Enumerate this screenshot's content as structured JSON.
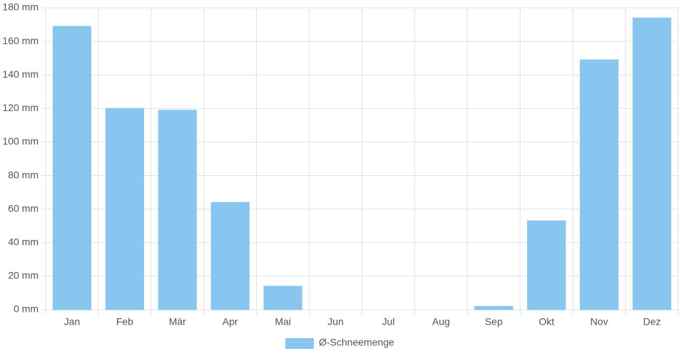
{
  "chart_data": {
    "type": "bar",
    "categories": [
      "Jan",
      "Feb",
      "Mär",
      "Apr",
      "Mai",
      "Jun",
      "Jul",
      "Aug",
      "Sep",
      "Okt",
      "Nov",
      "Dez"
    ],
    "series": [
      {
        "name": "Ø-Schneemenge",
        "color": "#88c6f0",
        "values": [
          169,
          120,
          119,
          64,
          14,
          0,
          0,
          0,
          2,
          53,
          149,
          174
        ]
      }
    ],
    "ylim": [
      0,
      180
    ],
    "yticks": [
      {
        "value": 0,
        "label": "0 mm"
      },
      {
        "value": 20,
        "label": "20 mm"
      },
      {
        "value": 40,
        "label": "40 mm"
      },
      {
        "value": 60,
        "label": "60 mm"
      },
      {
        "value": 80,
        "label": "80 mm"
      },
      {
        "value": 100,
        "label": "100 mm"
      },
      {
        "value": 120,
        "label": "120 mm"
      },
      {
        "value": 140,
        "label": "140 mm"
      },
      {
        "value": 160,
        "label": "160 mm"
      },
      {
        "value": 180,
        "label": "180 mm"
      }
    ],
    "grid": true,
    "legend": "bottom"
  }
}
